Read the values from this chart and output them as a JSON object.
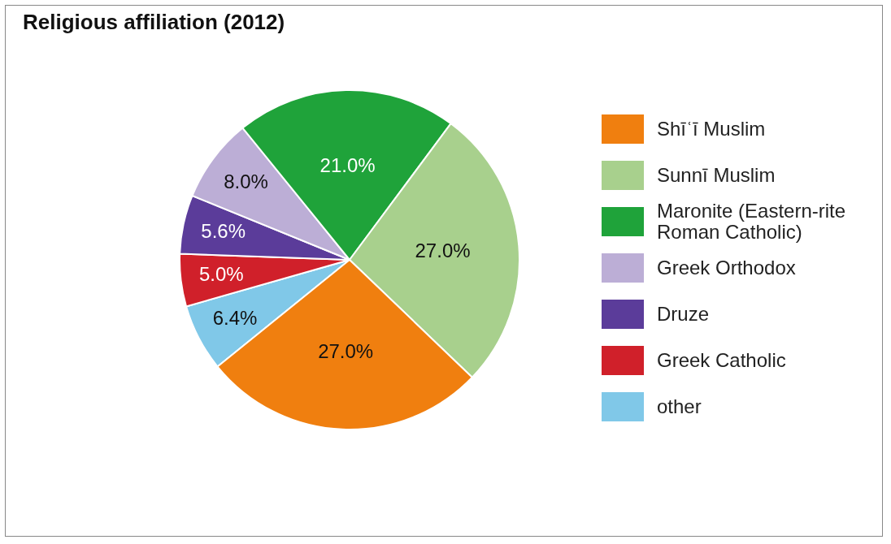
{
  "chart_data": {
    "type": "pie",
    "title": "Religious affiliation (2012)",
    "categories": [
      "Shīʿī Muslim",
      "Sunnī Muslim",
      "Maronite (Eastern-rite Roman Catholic)",
      "Greek Orthodox",
      "Druze",
      "Greek Catholic",
      "other"
    ],
    "values": [
      27.0,
      27.0,
      21.0,
      8.0,
      5.6,
      5.0,
      6.4
    ],
    "colors": [
      "#f07f0f",
      "#a8d08d",
      "#1fa33a",
      "#bcaed6",
      "#5b3c9a",
      "#d0202a",
      "#80c8e8"
    ],
    "value_labels": [
      "27.0%",
      "27.0%",
      "21.0%",
      "8.0%",
      "5.6%",
      "5.0%",
      "6.4%"
    ],
    "legend": "right"
  }
}
